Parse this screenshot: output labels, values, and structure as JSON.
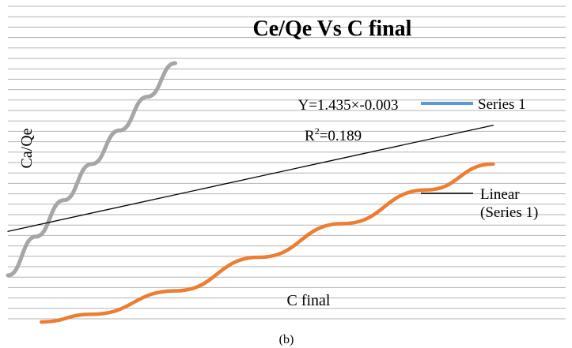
{
  "chart_data": {
    "type": "line",
    "title": "Ce/Qe Vs C final",
    "xlabel": "C final",
    "ylabel": "Ca/Qe",
    "caption": "(b)",
    "grid": true,
    "legend_position": "right",
    "legend": [
      {
        "label": "Series 1",
        "color": "#5b9bd5"
      },
      {
        "label": "Linear\n(Series 1)",
        "color": "#000000"
      }
    ],
    "annotations": {
      "equation": "Y=1.435×-0.003",
      "r2_prefix": "R",
      "r2_sup": "2",
      "r2_value": "=0.189"
    },
    "series": [
      {
        "color": "#a6a6a6",
        "x": [
          0.0,
          0.05,
          0.1,
          0.15,
          0.2,
          0.25,
          0.3
        ],
        "y": [
          0.18,
          0.33,
          0.47,
          0.61,
          0.74,
          0.87,
          1.0
        ]
      },
      {
        "color": "#ed7d31",
        "x": [
          0.06,
          0.15,
          0.3,
          0.45,
          0.6,
          0.75,
          0.87
        ],
        "y": [
          0.0,
          0.03,
          0.12,
          0.25,
          0.38,
          0.51,
          0.61
        ]
      },
      {
        "color": "#000000",
        "x": [
          0.0,
          0.87
        ],
        "y": [
          0.35,
          0.76
        ]
      }
    ]
  }
}
